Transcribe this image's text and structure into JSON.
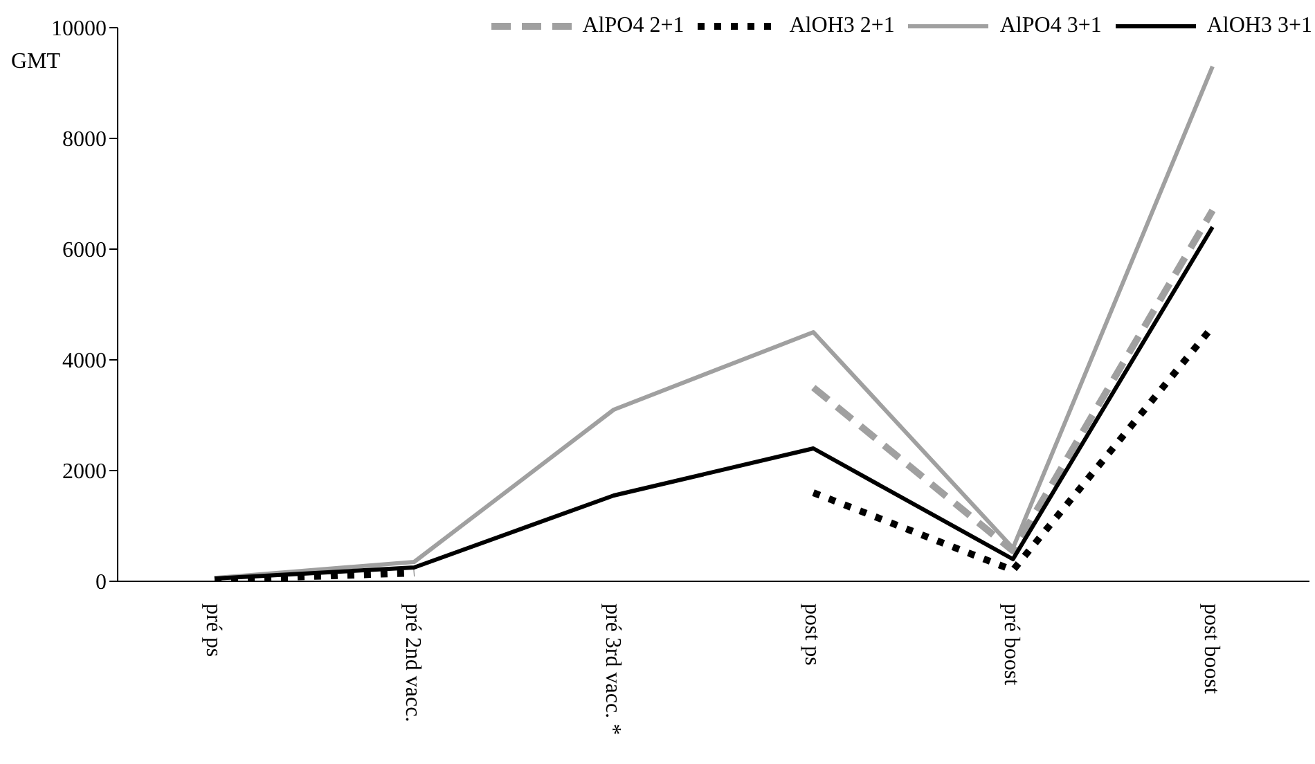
{
  "chart_data": {
    "type": "line",
    "ylabel": "GMT",
    "categories": [
      "pré ps",
      "pré 2nd vacc.",
      "pré 3rd vacc. *",
      "post ps",
      "pré boost",
      "post boost"
    ],
    "series": [
      {
        "name": "AlPO4 2+1",
        "color": "#a0a0a0",
        "line_style": "dashed",
        "values": [
          null,
          null,
          null,
          3500,
          550,
          6700
        ]
      },
      {
        "name": "AlOH3 2+1",
        "color": "#000000",
        "line_style": "dotted",
        "values": [
          30,
          150,
          null,
          1600,
          200,
          4600
        ]
      },
      {
        "name": "AlPO4 3+1",
        "color": "#a0a0a0",
        "line_style": "solid",
        "values": [
          60,
          350,
          3100,
          4500,
          600,
          9300
        ]
      },
      {
        "name": "AlOH3 3+1",
        "color": "#000000",
        "line_style": "solid",
        "values": [
          50,
          250,
          1550,
          2400,
          400,
          6400
        ]
      }
    ],
    "ylim": [
      0,
      10000
    ],
    "yticks": [
      0,
      2000,
      4000,
      6000,
      8000,
      10000
    ],
    "grid": false,
    "legend": "top right"
  }
}
